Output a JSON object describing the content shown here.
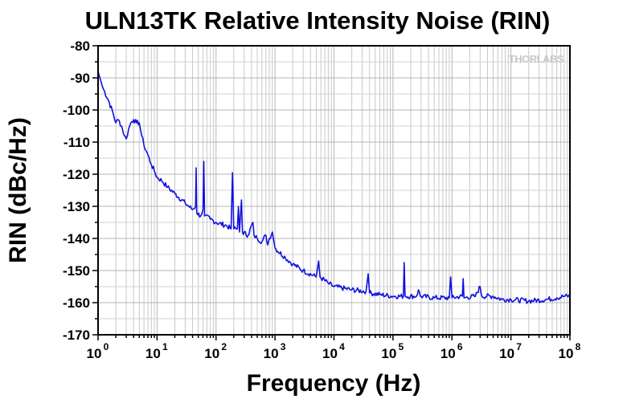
{
  "chart_data": {
    "type": "line",
    "title": "ULN13TK Relative Intensity Noise (RIN)",
    "xlabel": "Frequency (Hz)",
    "ylabel": "RIN (dBc/Hz)",
    "xscale": "log",
    "xlim": [
      1,
      100000000
    ],
    "ylim": [
      -170,
      -80
    ],
    "grid": true,
    "watermark": "THORLABS",
    "x_ticks": [
      {
        "base": "10",
        "exp": "0"
      },
      {
        "base": "10",
        "exp": "1"
      },
      {
        "base": "10",
        "exp": "2"
      },
      {
        "base": "10",
        "exp": "3"
      },
      {
        "base": "10",
        "exp": "4"
      },
      {
        "base": "10",
        "exp": "5"
      },
      {
        "base": "10",
        "exp": "6"
      },
      {
        "base": "10",
        "exp": "7"
      },
      {
        "base": "10",
        "exp": "8"
      }
    ],
    "y_ticks": [
      "-80",
      "-90",
      "-100",
      "-110",
      "-120",
      "-130",
      "-140",
      "-150",
      "-160",
      "-170"
    ],
    "line_color": "#1010e0",
    "series": [
      {
        "name": "RIN",
        "points": [
          [
            1,
            -88
          ],
          [
            1.2,
            -93
          ],
          [
            1.5,
            -97
          ],
          [
            1.8,
            -101
          ],
          [
            2.0,
            -104
          ],
          [
            2.2,
            -103
          ],
          [
            2.5,
            -105
          ],
          [
            2.8,
            -108
          ],
          [
            3.0,
            -109
          ],
          [
            3.3,
            -106
          ],
          [
            3.6,
            -104
          ],
          [
            4.0,
            -103
          ],
          [
            4.5,
            -104
          ],
          [
            5.0,
            -104
          ],
          [
            5.5,
            -108
          ],
          [
            6.0,
            -111
          ],
          [
            7.0,
            -114
          ],
          [
            8.0,
            -117
          ],
          [
            9.0,
            -119
          ],
          [
            10,
            -121
          ],
          [
            12,
            -122
          ],
          [
            15,
            -124
          ],
          [
            20,
            -126
          ],
          [
            30,
            -129
          ],
          [
            40,
            -131
          ],
          [
            45,
            -130
          ],
          [
            46,
            -118
          ],
          [
            47,
            -132
          ],
          [
            55,
            -133
          ],
          [
            60,
            -131
          ],
          [
            62,
            -116
          ],
          [
            64,
            -133
          ],
          [
            80,
            -134
          ],
          [
            100,
            -135
          ],
          [
            150,
            -136
          ],
          [
            180,
            -137
          ],
          [
            190,
            -119.5
          ],
          [
            200,
            -137
          ],
          [
            230,
            -137
          ],
          [
            240,
            -130
          ],
          [
            250,
            -138
          ],
          [
            270,
            -128
          ],
          [
            280,
            -138
          ],
          [
            350,
            -139
          ],
          [
            420,
            -135
          ],
          [
            440,
            -139
          ],
          [
            500,
            -140
          ],
          [
            600,
            -141
          ],
          [
            700,
            -139
          ],
          [
            750,
            -142
          ],
          [
            800,
            -140
          ],
          [
            900,
            -138
          ],
          [
            1000,
            -143
          ],
          [
            1500,
            -146
          ],
          [
            2000,
            -148
          ],
          [
            3000,
            -150
          ],
          [
            5000,
            -152
          ],
          [
            5500,
            -147
          ],
          [
            5800,
            -152
          ],
          [
            8000,
            -154
          ],
          [
            10000,
            -155
          ],
          [
            20000,
            -156
          ],
          [
            35000,
            -156.5
          ],
          [
            38000,
            -151
          ],
          [
            40000,
            -157
          ],
          [
            60000,
            -157.5
          ],
          [
            100000,
            -158
          ],
          [
            150000,
            -158
          ],
          [
            155000,
            -147.5
          ],
          [
            160000,
            -158
          ],
          [
            250000,
            -158
          ],
          [
            270000,
            -156
          ],
          [
            290000,
            -158
          ],
          [
            500000,
            -158.5
          ],
          [
            900000,
            -158.5
          ],
          [
            950000,
            -152
          ],
          [
            1000000,
            -158.5
          ],
          [
            1500000,
            -158
          ],
          [
            1550000,
            -152.5
          ],
          [
            1600000,
            -158.5
          ],
          [
            2500000,
            -158
          ],
          [
            3000000,
            -155
          ],
          [
            3200000,
            -158
          ],
          [
            5000000,
            -158
          ],
          [
            7000000,
            -159
          ],
          [
            10000000,
            -159
          ],
          [
            20000000,
            -159.5
          ],
          [
            40000000,
            -159
          ],
          [
            60000000,
            -158.5
          ],
          [
            80000000,
            -158
          ],
          [
            100000000,
            -158
          ]
        ]
      }
    ]
  }
}
